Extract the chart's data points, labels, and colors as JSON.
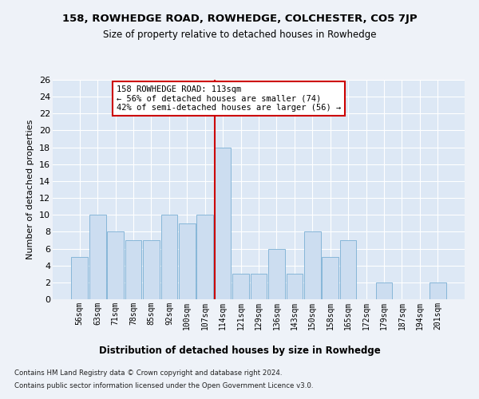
{
  "title": "158, ROWHEDGE ROAD, ROWHEDGE, COLCHESTER, CO5 7JP",
  "subtitle": "Size of property relative to detached houses in Rowhedge",
  "xlabel_bottom": "Distribution of detached houses by size in Rowhedge",
  "ylabel": "Number of detached properties",
  "bins": [
    "56sqm",
    "63sqm",
    "71sqm",
    "78sqm",
    "85sqm",
    "92sqm",
    "100sqm",
    "107sqm",
    "114sqm",
    "121sqm",
    "129sqm",
    "136sqm",
    "143sqm",
    "150sqm",
    "158sqm",
    "165sqm",
    "172sqm",
    "179sqm",
    "187sqm",
    "194sqm",
    "201sqm"
  ],
  "values": [
    5,
    10,
    8,
    7,
    7,
    10,
    9,
    10,
    18,
    3,
    3,
    6,
    3,
    8,
    5,
    7,
    0,
    2,
    0,
    0,
    2
  ],
  "bar_color": "#ccddf0",
  "bar_edge_color": "#7aafd4",
  "vline_index": 8,
  "vline_color": "#cc0000",
  "annotation_text": "158 ROWHEDGE ROAD: 113sqm\n← 56% of detached houses are smaller (74)\n42% of semi-detached houses are larger (56) →",
  "annotation_box_color": "#ffffff",
  "annotation_box_edge": "#cc0000",
  "ylim": [
    0,
    26
  ],
  "yticks": [
    0,
    2,
    4,
    6,
    8,
    10,
    12,
    14,
    16,
    18,
    20,
    22,
    24,
    26
  ],
  "background_color": "#dde8f5",
  "grid_color": "#ffffff",
  "fig_background": "#eef2f8",
  "footer_line1": "Contains HM Land Registry data © Crown copyright and database right 2024.",
  "footer_line2": "Contains public sector information licensed under the Open Government Licence v3.0."
}
